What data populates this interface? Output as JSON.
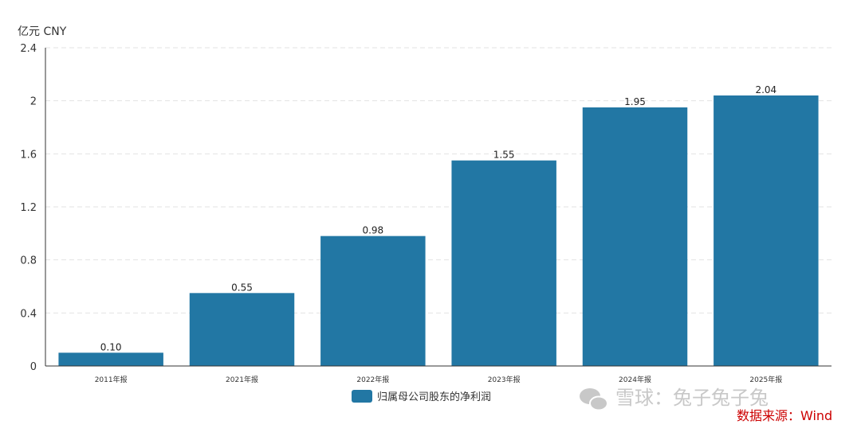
{
  "chart_data": {
    "type": "bar",
    "unit_label": "亿元  CNY",
    "categories": [
      "2011年报",
      "2021年报",
      "2022年报",
      "2023年报",
      "2024年报",
      "2025年报"
    ],
    "series": [
      {
        "name": "归属母公司股东的净利润",
        "values": [
          0.1,
          0.55,
          0.98,
          1.55,
          1.95,
          2.04
        ],
        "labels": [
          "0.10",
          "0.55",
          "0.98",
          "1.55",
          "1.95",
          "2.04"
        ],
        "color": "#2277a4"
      }
    ],
    "yticks": [
      "0",
      "0.4",
      "0.8",
      "1.2",
      "1.6",
      "2",
      "2.4"
    ],
    "ylim": [
      0,
      2.4
    ],
    "grid": true,
    "legend_position": "bottom"
  },
  "watermark": "雪球：兔子兔子兔",
  "source": "数据来源：Wind",
  "colors": {
    "bar": "#2277a4",
    "grid": "#e3e3e3",
    "axis": "#333333",
    "source": "#cc0000",
    "watermark": "#c8c8c8"
  }
}
